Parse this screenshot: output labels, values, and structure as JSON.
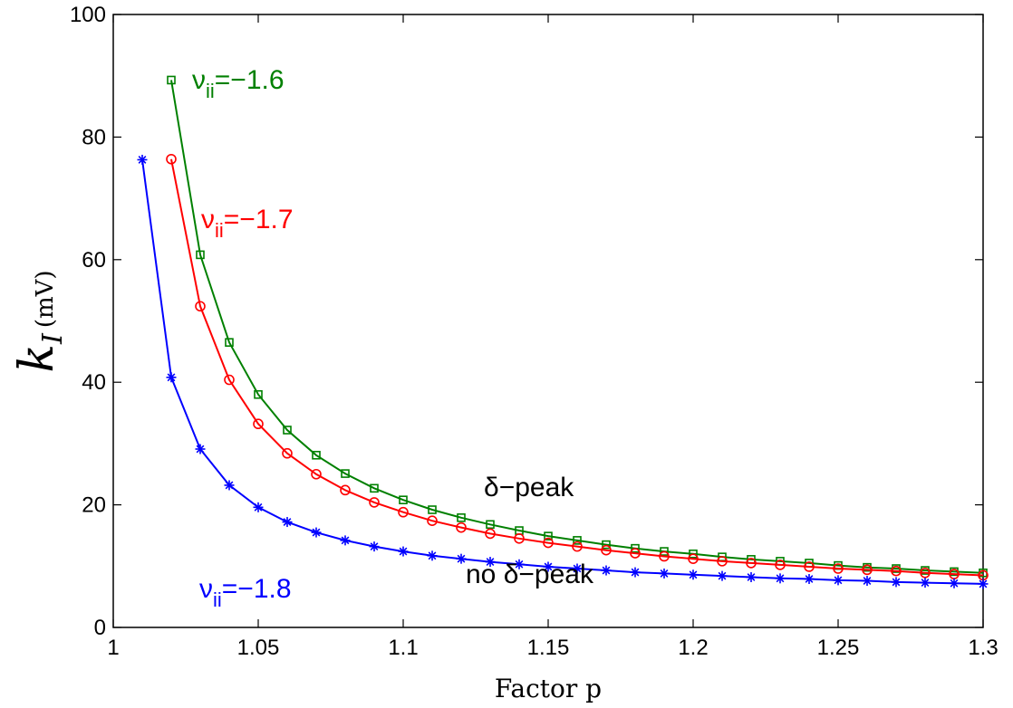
{
  "chart_data": {
    "type": "line",
    "xlabel": "Factor p",
    "ylabel": {
      "symbol": "k",
      "subscript": "I",
      "unit": "(mV)"
    },
    "xlim": [
      1,
      1.3
    ],
    "ylim": [
      0,
      100
    ],
    "xticks": [
      "1",
      "1.05",
      "1.1",
      "1.15",
      "1.2",
      "1.25",
      "1.3"
    ],
    "yticks": [
      "0",
      "20",
      "40",
      "60",
      "80",
      "100"
    ],
    "xtick_values": [
      1,
      1.05,
      1.1,
      1.15,
      1.2,
      1.25,
      1.3
    ],
    "ytick_values": [
      0,
      20,
      40,
      60,
      80,
      100
    ],
    "grid": false,
    "series": [
      {
        "color": "#008000",
        "marker": "square",
        "x": [
          1.02,
          1.03,
          1.04,
          1.05,
          1.06,
          1.07,
          1.08,
          1.09,
          1.1,
          1.11,
          1.12,
          1.13,
          1.14,
          1.15,
          1.16,
          1.17,
          1.18,
          1.19,
          1.2,
          1.21,
          1.22,
          1.23,
          1.24,
          1.25,
          1.26,
          1.27,
          1.28,
          1.29,
          1.3
        ],
        "y": [
          89.3,
          60.8,
          46.5,
          38.0,
          32.2,
          28.1,
          25.1,
          22.7,
          20.8,
          19.2,
          17.9,
          16.8,
          15.8,
          14.9,
          14.2,
          13.5,
          12.9,
          12.4,
          12.0,
          11.5,
          11.1,
          10.8,
          10.5,
          10.1,
          9.8,
          9.6,
          9.3,
          9.1,
          8.9
        ]
      },
      {
        "color": "#ff0000",
        "marker": "circle",
        "x": [
          1.02,
          1.03,
          1.04,
          1.05,
          1.06,
          1.07,
          1.08,
          1.09,
          1.1,
          1.11,
          1.12,
          1.13,
          1.14,
          1.15,
          1.16,
          1.17,
          1.18,
          1.19,
          1.2,
          1.21,
          1.22,
          1.23,
          1.24,
          1.25,
          1.26,
          1.27,
          1.28,
          1.29,
          1.3
        ],
        "y": [
          76.4,
          52.4,
          40.4,
          33.2,
          28.4,
          25.0,
          22.4,
          20.4,
          18.8,
          17.4,
          16.3,
          15.3,
          14.5,
          13.8,
          13.2,
          12.6,
          12.1,
          11.6,
          11.2,
          10.8,
          10.5,
          10.2,
          9.9,
          9.6,
          9.4,
          9.2,
          8.9,
          8.7,
          8.5
        ]
      },
      {
        "color": "#0000ff",
        "marker": "star",
        "x": [
          1.01,
          1.02,
          1.03,
          1.04,
          1.05,
          1.06,
          1.07,
          1.08,
          1.09,
          1.1,
          1.11,
          1.12,
          1.13,
          1.14,
          1.15,
          1.16,
          1.17,
          1.18,
          1.19,
          1.2,
          1.21,
          1.22,
          1.23,
          1.24,
          1.25,
          1.26,
          1.27,
          1.28,
          1.29,
          1.3
        ],
        "y": [
          76.3,
          40.8,
          29.1,
          23.2,
          19.6,
          17.2,
          15.5,
          14.2,
          13.2,
          12.4,
          11.7,
          11.2,
          10.7,
          10.3,
          9.9,
          9.6,
          9.3,
          9.0,
          8.8,
          8.6,
          8.4,
          8.2,
          8.0,
          7.9,
          7.7,
          7.6,
          7.4,
          7.3,
          7.2,
          7.1
        ]
      }
    ],
    "annotations": [
      {
        "id": "nu16",
        "symbol": "ν",
        "sub": "ii",
        "text": "=−1.6",
        "color": "#008000"
      },
      {
        "id": "nu17",
        "symbol": "ν",
        "sub": "ii",
        "text": "=−1.7",
        "color": "#ff0000"
      },
      {
        "id": "nu18",
        "symbol": "ν",
        "sub": "ii",
        "text": "=−1.8",
        "color": "#0000ff"
      },
      {
        "id": "dpeak",
        "text": "δ−peak",
        "color": "#000000"
      },
      {
        "id": "nodpeak",
        "text": "no δ−peak",
        "color": "#000000"
      }
    ]
  }
}
